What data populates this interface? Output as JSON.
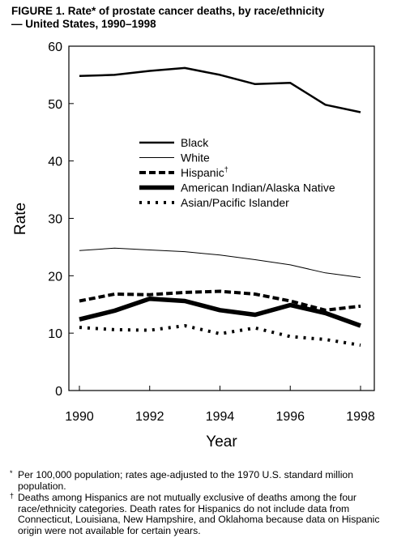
{
  "title": {
    "line1": "FIGURE 1. Rate* of prostate cancer deaths, by race/ethnicity",
    "line2": "— United States, 1990–1998"
  },
  "chart_data": {
    "type": "line",
    "x": [
      1990,
      1991,
      1992,
      1993,
      1994,
      1995,
      1996,
      1997,
      1998
    ],
    "xticks": [
      "1990",
      "1992",
      "1994",
      "1996",
      "1998"
    ],
    "yticks": [
      "0",
      "10",
      "20",
      "30",
      "40",
      "50",
      "60"
    ],
    "xlabel": "Year",
    "ylabel": "Rate",
    "xlim": [
      1990,
      1998
    ],
    "ylim": [
      0,
      60
    ],
    "grid": false,
    "legend_position": "center",
    "series": [
      {
        "name": "Black",
        "style": "thick-solid",
        "values": [
          54.8,
          55.0,
          55.7,
          56.2,
          55.0,
          53.4,
          53.6,
          49.8,
          48.5
        ]
      },
      {
        "name": "White",
        "style": "thin-solid",
        "values": [
          24.4,
          24.8,
          24.5,
          24.2,
          23.6,
          22.8,
          21.9,
          20.5,
          19.7
        ]
      },
      {
        "name": "Hispanic",
        "name_mark": "†",
        "style": "dashed",
        "values": [
          15.6,
          16.8,
          16.7,
          17.1,
          17.3,
          16.8,
          15.6,
          14.0,
          14.7
        ]
      },
      {
        "name": "American Indian/Alaska Native",
        "style": "extra-thick-solid",
        "values": [
          12.4,
          13.9,
          16.0,
          15.6,
          14.0,
          13.2,
          14.9,
          13.5,
          11.3
        ]
      },
      {
        "name": "Asian/Pacific Islander",
        "style": "dotted",
        "values": [
          11.0,
          10.6,
          10.5,
          11.3,
          9.9,
          10.9,
          9.4,
          8.9,
          7.9
        ]
      }
    ]
  },
  "footnotes": [
    {
      "mark": "*",
      "text": "Per 100,000 population; rates age-adjusted to the 1970 U.S. standard million population."
    },
    {
      "mark": "†",
      "text": "Deaths among Hispanics are not mutually exclusive of deaths among the four race/ethnicity categories. Death rates for Hispanics do not include data from Connecticut, Louisiana, New Hampshire, and Oklahoma because data on Hispanic origin were not available for certain years."
    }
  ]
}
